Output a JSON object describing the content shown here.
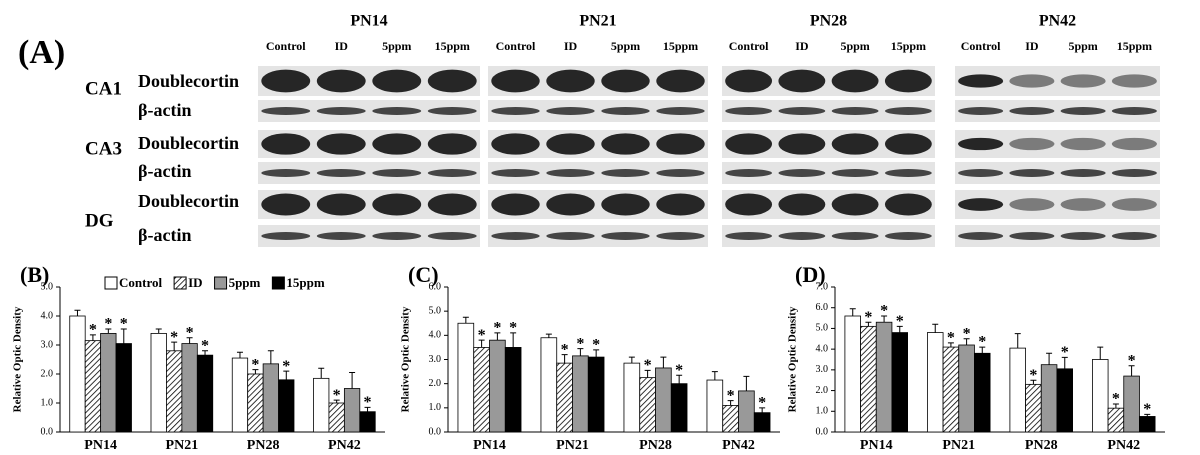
{
  "panel_a": {
    "label": "(A)",
    "groups": [
      {
        "label": "PN14",
        "lanes": [
          "Control",
          "ID",
          "5ppm",
          "15ppm"
        ]
      },
      {
        "label": "PN21",
        "lanes": [
          "Control",
          "ID",
          "5ppm",
          "15ppm"
        ]
      },
      {
        "label": "PN28",
        "lanes": [
          "Control",
          "ID",
          "5ppm",
          "15ppm"
        ]
      },
      {
        "label": "PN42",
        "lanes": [
          "Control",
          "ID",
          "5ppm",
          "15ppm"
        ]
      }
    ],
    "regions": [
      {
        "label": "CA1",
        "rows": [
          "Doublecortin",
          "β-actin"
        ]
      },
      {
        "label": "CA3",
        "rows": [
          "Doublecortin",
          "β-actin"
        ]
      },
      {
        "label": "DG",
        "rows": [
          "Doublecortin",
          "β-actin"
        ]
      }
    ]
  },
  "chart_data": [
    {
      "type": "bar",
      "panel_label": "(B)",
      "y_label": "Relative Optic Density",
      "legend": "top",
      "categories": [
        "PN14",
        "PN21",
        "PN28",
        "PN42"
      ],
      "ylim": [
        0,
        5
      ],
      "yticks": [
        {
          "value": 0,
          "label": "0.0"
        },
        {
          "value": 1,
          "label": "1.0"
        },
        {
          "value": 2,
          "label": "2.0"
        },
        {
          "value": 3,
          "label": "3.0"
        },
        {
          "value": 4,
          "label": "4.0"
        },
        {
          "value": 5,
          "label": "5.0"
        }
      ],
      "series": [
        {
          "name": "Control",
          "color": "#ffffff",
          "values": [
            4.0,
            3.4,
            2.55,
            1.85
          ],
          "errors": [
            0.2,
            0.15,
            0.2,
            0.35
          ],
          "stars": [
            null,
            null,
            null,
            null
          ]
        },
        {
          "name": "ID",
          "color": "hatch",
          "values": [
            3.15,
            2.8,
            2.0,
            1.0
          ],
          "errors": [
            0.2,
            0.3,
            0.15,
            0.1
          ],
          "stars": [
            "*",
            "*",
            "*",
            "*"
          ]
        },
        {
          "name": "5ppm",
          "color": "#999999",
          "values": [
            3.4,
            3.05,
            2.35,
            1.5
          ],
          "errors": [
            0.15,
            0.2,
            0.45,
            0.55
          ],
          "stars": [
            "*",
            "*",
            null,
            null
          ]
        },
        {
          "name": "15ppm",
          "color": "#000000",
          "values": [
            3.05,
            2.65,
            1.8,
            0.7
          ],
          "errors": [
            0.5,
            0.15,
            0.3,
            0.15
          ],
          "stars": [
            "*",
            "*",
            "*",
            "*"
          ]
        }
      ]
    },
    {
      "type": "bar",
      "panel_label": "(C)",
      "y_label": "Relative Optic Density",
      "categories": [
        "PN14",
        "PN21",
        "PN28",
        "PN42"
      ],
      "ylim": [
        0,
        6
      ],
      "yticks": [
        {
          "value": 0,
          "label": "0.0"
        },
        {
          "value": 1,
          "label": "1.0"
        },
        {
          "value": 2,
          "label": "2.0"
        },
        {
          "value": 3,
          "label": "3.0"
        },
        {
          "value": 4,
          "label": "4.0"
        },
        {
          "value": 5,
          "label": "5.0"
        },
        {
          "value": 6,
          "label": "6.0"
        }
      ],
      "series": [
        {
          "color": "#ffffff",
          "values": [
            4.5,
            3.9,
            2.85,
            2.15
          ],
          "errors": [
            0.25,
            0.15,
            0.25,
            0.35
          ],
          "stars": [
            null,
            null,
            null,
            null
          ]
        },
        {
          "color": "hatch",
          "values": [
            3.5,
            2.85,
            2.25,
            1.1
          ],
          "errors": [
            0.3,
            0.35,
            0.3,
            0.2
          ],
          "stars": [
            "*",
            "*",
            "*",
            "*"
          ]
        },
        {
          "color": "#999999",
          "values": [
            3.8,
            3.15,
            2.65,
            1.7
          ],
          "errors": [
            0.3,
            0.3,
            0.45,
            0.6
          ],
          "stars": [
            "*",
            "*",
            null,
            null
          ]
        },
        {
          "color": "#000000",
          "values": [
            3.5,
            3.1,
            2.0,
            0.8
          ],
          "errors": [
            0.6,
            0.3,
            0.35,
            0.2
          ],
          "stars": [
            "*",
            "*",
            "*",
            "*"
          ]
        }
      ]
    },
    {
      "type": "bar",
      "panel_label": "(D)",
      "y_label": "Relative Optic Density",
      "categories": [
        "PN14",
        "PN21",
        "PN28",
        "PN42"
      ],
      "ylim": [
        0,
        7
      ],
      "yticks": [
        {
          "value": 0,
          "label": "0.0"
        },
        {
          "value": 1,
          "label": "1.0"
        },
        {
          "value": 2,
          "label": "2.0"
        },
        {
          "value": 3,
          "label": "3.0"
        },
        {
          "value": 4,
          "label": "4.0"
        },
        {
          "value": 5,
          "label": "5.0"
        },
        {
          "value": 6,
          "label": "6.0"
        },
        {
          "value": 7,
          "label": "7.0"
        }
      ],
      "series": [
        {
          "color": "#ffffff",
          "values": [
            5.6,
            4.8,
            4.05,
            3.5
          ],
          "errors": [
            0.35,
            0.4,
            0.7,
            0.6
          ],
          "stars": [
            null,
            null,
            null,
            null
          ]
        },
        {
          "color": "hatch",
          "values": [
            5.1,
            4.1,
            2.3,
            1.15
          ],
          "errors": [
            0.2,
            0.2,
            0.2,
            0.2
          ],
          "stars": [
            "*",
            "*",
            "*",
            "*"
          ]
        },
        {
          "color": "#999999",
          "values": [
            5.3,
            4.2,
            3.25,
            2.7
          ],
          "errors": [
            0.3,
            0.3,
            0.55,
            0.5
          ],
          "stars": [
            "*",
            "*",
            null,
            "*"
          ]
        },
        {
          "color": "#000000",
          "values": [
            4.8,
            3.8,
            3.05,
            0.75
          ],
          "errors": [
            0.3,
            0.3,
            0.55,
            0.1
          ],
          "stars": [
            "*",
            "*",
            "*",
            "*"
          ]
        }
      ]
    }
  ]
}
